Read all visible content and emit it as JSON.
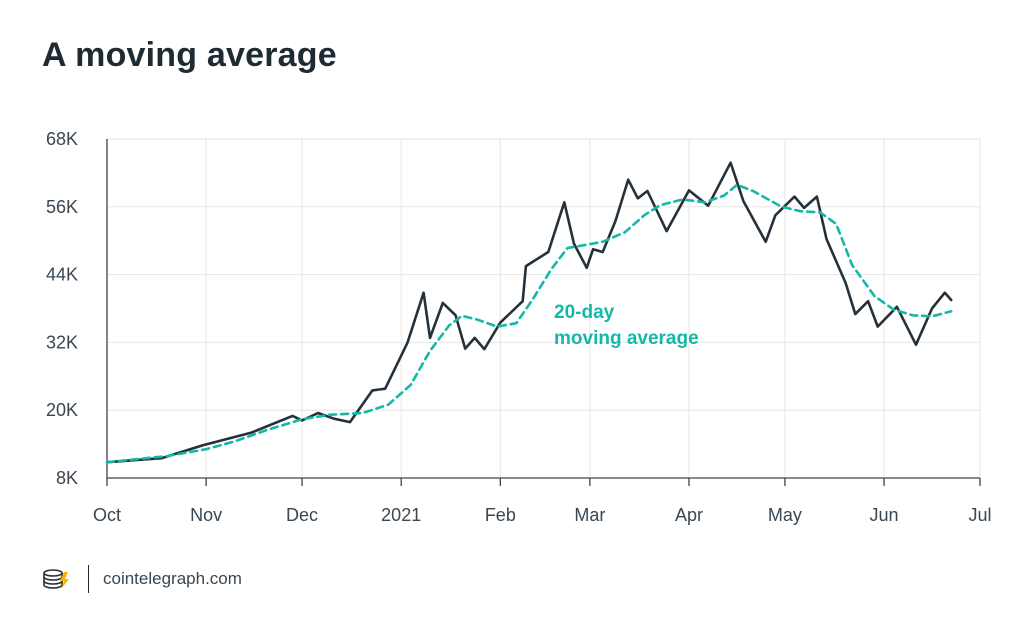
{
  "title": "A moving average",
  "footer": {
    "brand": "cointelegraph.com",
    "logo_icon": "cointelegraph-coins-logo"
  },
  "colors": {
    "price": "#25313a",
    "ma": "#14b8a6",
    "grid": "#e6e6e6",
    "axis": "#3a4650",
    "text": "#1f2b33"
  },
  "chart_data": {
    "type": "line",
    "title": "A moving average",
    "xlabel": "",
    "ylabel": "",
    "x_ticks": [
      "Oct",
      "Nov",
      "Dec",
      "2021",
      "Feb",
      "Mar",
      "Apr",
      "May",
      "Jun",
      "Jul"
    ],
    "y_ticks": [
      "8K",
      "20K",
      "32K",
      "44K",
      "56K",
      "68K"
    ],
    "y_tick_values": [
      8000,
      20000,
      32000,
      44000,
      56000,
      68000
    ],
    "ylim": [
      8000,
      68000
    ],
    "xlim": [
      "2020-10-01",
      "2021-07-01"
    ],
    "grid": true,
    "annotation": {
      "lines": [
        "20-day",
        "moving average"
      ]
    },
    "series": [
      {
        "style": "solid",
        "points": [
          [
            "2020-10-01",
            10800
          ],
          [
            "2020-10-18",
            11500
          ],
          [
            "2020-10-31",
            13800
          ],
          [
            "2020-11-15",
            16000
          ],
          [
            "2020-11-28",
            19000
          ],
          [
            "2020-12-01",
            18200
          ],
          [
            "2020-12-06",
            19500
          ],
          [
            "2020-12-11",
            18500
          ],
          [
            "2020-12-16",
            17900
          ],
          [
            "2020-12-23",
            23500
          ],
          [
            "2020-12-27",
            23800
          ],
          [
            "2021-01-03",
            32000
          ],
          [
            "2021-01-08",
            40800
          ],
          [
            "2021-01-10",
            32800
          ],
          [
            "2021-01-14",
            39000
          ],
          [
            "2021-01-18",
            36800
          ],
          [
            "2021-01-21",
            30900
          ],
          [
            "2021-01-24",
            32800
          ],
          [
            "2021-01-27",
            30800
          ],
          [
            "2021-02-01",
            35500
          ],
          [
            "2021-02-08",
            39300
          ],
          [
            "2021-02-09",
            45500
          ],
          [
            "2021-02-16",
            48000
          ],
          [
            "2021-02-21",
            56800
          ],
          [
            "2021-02-24",
            49500
          ],
          [
            "2021-02-28",
            45200
          ],
          [
            "2021-03-02",
            48500
          ],
          [
            "2021-03-05",
            48000
          ],
          [
            "2021-03-09",
            53500
          ],
          [
            "2021-03-13",
            60800
          ],
          [
            "2021-03-16",
            57500
          ],
          [
            "2021-03-19",
            58800
          ],
          [
            "2021-03-25",
            51700
          ],
          [
            "2021-04-01",
            58900
          ],
          [
            "2021-04-07",
            56200
          ],
          [
            "2021-04-14",
            63800
          ],
          [
            "2021-04-18",
            57000
          ],
          [
            "2021-04-25",
            49800
          ],
          [
            "2021-04-28",
            54500
          ],
          [
            "2021-05-04",
            57800
          ],
          [
            "2021-05-07",
            55800
          ],
          [
            "2021-05-11",
            57800
          ],
          [
            "2021-05-14",
            50300
          ],
          [
            "2021-05-20",
            42500
          ],
          [
            "2021-05-23",
            37000
          ],
          [
            "2021-05-27",
            39300
          ],
          [
            "2021-05-30",
            34800
          ],
          [
            "2021-06-05",
            38300
          ],
          [
            "2021-06-11",
            31600
          ],
          [
            "2021-06-16",
            38000
          ],
          [
            "2021-06-20",
            40800
          ],
          [
            "2021-06-22",
            39500
          ]
        ]
      },
      {
        "style": "dashed",
        "points": [
          [
            "2020-10-01",
            10800
          ],
          [
            "2020-10-20",
            11900
          ],
          [
            "2020-11-01",
            13100
          ],
          [
            "2020-11-10",
            14500
          ],
          [
            "2020-11-20",
            16500
          ],
          [
            "2020-12-01",
            18400
          ],
          [
            "2020-12-10",
            19200
          ],
          [
            "2020-12-20",
            19500
          ],
          [
            "2020-12-28",
            21000
          ],
          [
            "2021-01-04",
            24500
          ],
          [
            "2021-01-10",
            30500
          ],
          [
            "2021-01-16",
            35000
          ],
          [
            "2021-01-20",
            36700
          ],
          [
            "2021-01-25",
            36000
          ],
          [
            "2021-01-31",
            34800
          ],
          [
            "2021-02-06",
            35400
          ],
          [
            "2021-02-11",
            39500
          ],
          [
            "2021-02-17",
            45000
          ],
          [
            "2021-02-22",
            48700
          ],
          [
            "2021-02-28",
            49300
          ],
          [
            "2021-03-05",
            49800
          ],
          [
            "2021-03-12",
            51500
          ],
          [
            "2021-03-18",
            54500
          ],
          [
            "2021-03-23",
            56300
          ],
          [
            "2021-03-30",
            57300
          ],
          [
            "2021-04-06",
            56800
          ],
          [
            "2021-04-12",
            58000
          ],
          [
            "2021-04-16",
            59900
          ],
          [
            "2021-04-21",
            58800
          ],
          [
            "2021-04-30",
            56000
          ],
          [
            "2021-05-06",
            55200
          ],
          [
            "2021-05-12",
            55000
          ],
          [
            "2021-05-17",
            53000
          ],
          [
            "2021-05-22",
            45700
          ],
          [
            "2021-05-29",
            40200
          ],
          [
            "2021-06-04",
            37800
          ],
          [
            "2021-06-10",
            36800
          ],
          [
            "2021-06-16",
            36600
          ],
          [
            "2021-06-22",
            37500
          ]
        ]
      }
    ]
  }
}
